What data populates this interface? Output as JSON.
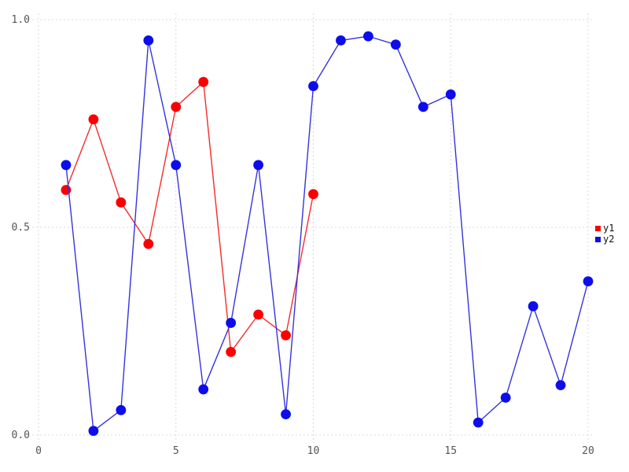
{
  "chart_data": {
    "type": "line",
    "title": "",
    "xlabel": "",
    "ylabel": "",
    "xlim": [
      0,
      20
    ],
    "ylim": [
      0.0,
      1.0
    ],
    "grid": true,
    "grid_style": "dashed",
    "legend_position": "right",
    "x_ticks": [
      0,
      5,
      10,
      15,
      20
    ],
    "x_tick_labels": [
      "0",
      "5",
      "10",
      "15",
      "20"
    ],
    "y_ticks": [
      0.0,
      0.5,
      1.0
    ],
    "y_tick_labels": [
      "0.0",
      "0.5",
      "1.0"
    ],
    "series": [
      {
        "name": "y1",
        "marker_color": "#fa0000",
        "line_color": "#f52b2b",
        "x": [
          1,
          2,
          3,
          4,
          5,
          6,
          7,
          8,
          9,
          10
        ],
        "values": [
          0.59,
          0.76,
          0.56,
          0.46,
          0.79,
          0.85,
          0.2,
          0.29,
          0.24,
          0.58
        ]
      },
      {
        "name": "y2",
        "marker_color": "#0d0deb",
        "line_color": "#3434dd",
        "x": [
          1,
          2,
          3,
          4,
          5,
          6,
          7,
          8,
          9,
          10,
          11,
          12,
          13,
          14,
          15,
          16,
          17,
          18,
          19,
          20
        ],
        "values": [
          0.65,
          0.01,
          0.06,
          0.95,
          0.65,
          0.11,
          0.27,
          0.65,
          0.05,
          0.84,
          0.95,
          0.96,
          0.94,
          0.79,
          0.82,
          0.03,
          0.09,
          0.31,
          0.12,
          0.37
        ]
      }
    ]
  },
  "colors": {
    "background": "#ffffff",
    "grid": "#d9d9e6",
    "tick_label": "#555555",
    "legend_text": "#111111"
  }
}
